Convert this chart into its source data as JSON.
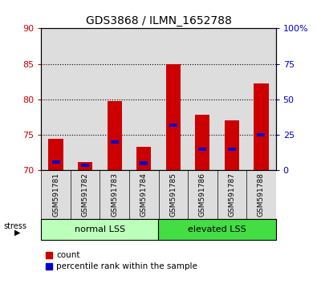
{
  "title": "GDS3868 / ILMN_1652788",
  "samples": [
    "GSM591781",
    "GSM591782",
    "GSM591783",
    "GSM591784",
    "GSM591785",
    "GSM591786",
    "GSM591787",
    "GSM591788"
  ],
  "count_values": [
    74.5,
    71.2,
    79.8,
    73.3,
    85.0,
    77.8,
    77.0,
    82.2
  ],
  "percentile_values": [
    6.0,
    3.5,
    20.0,
    5.0,
    32.0,
    15.0,
    15.0,
    25.0
  ],
  "ylim_left": [
    70,
    90
  ],
  "ylim_right": [
    0,
    100
  ],
  "yticks_left": [
    70,
    75,
    80,
    85,
    90
  ],
  "yticks_right": [
    0,
    25,
    50,
    75,
    100
  ],
  "groups": [
    {
      "label": "normal LSS",
      "start": 0,
      "end": 4,
      "color": "#bbffbb"
    },
    {
      "label": "elevated LSS",
      "start": 4,
      "end": 8,
      "color": "#44dd44"
    }
  ],
  "bar_color": "#cc0000",
  "blue_color": "#0000cc",
  "bar_width": 0.5,
  "bg_color": "#ffffff",
  "plot_bg": "#ffffff",
  "legend_items": [
    "count",
    "percentile rank within the sample"
  ],
  "tick_color_left": "#cc0000",
  "tick_color_right": "#0000cc",
  "bar_base": 70,
  "col_bg_color": "#dddddd",
  "grid_color": "black",
  "title_fontsize": 10,
  "tick_fontsize": 8,
  "label_fontsize": 8
}
